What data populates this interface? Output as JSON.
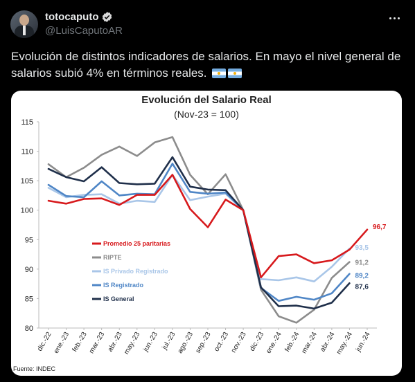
{
  "tweet": {
    "author_name": "totocaputo",
    "author_handle": "@LuisCaputoAR",
    "text": "Evolución de distintos indicadores de salarios. En mayo el nivel general de salarios subió 4% en términos reales.",
    "icons": [
      "verified-badge-icon",
      "more-icon",
      "argentina-flag-icon",
      "argentina-flag-icon"
    ]
  },
  "chart_data": {
    "type": "line",
    "title": "Evolución del Salario Real",
    "subtitle": "(Nov-23 = 100)",
    "source": "Fuente: INDEC",
    "categories": [
      "dic.-22",
      "ene.-23",
      "feb.-23",
      "mar.-23",
      "abr.-23",
      "may.-23",
      "jun.-23",
      "jul.-23",
      "ago.-23",
      "sep.-23",
      "oct.-23",
      "nov.-23",
      "dic.-23",
      "ene.-24",
      "feb.-24",
      "mar.-24",
      "abr.-24",
      "may.-24",
      "jun.-24"
    ],
    "ylim": [
      80,
      115
    ],
    "yticks": [
      "80",
      "85",
      "90",
      "95",
      "100",
      "105",
      "110",
      "115"
    ],
    "grid": false,
    "legend_placement": "left-center",
    "series": [
      {
        "name": "Promedio 25 paritarias",
        "color": "#d7191c",
        "end_label": "96,7",
        "values": [
          101.6,
          101.1,
          101.9,
          102.0,
          100.9,
          102.6,
          102.6,
          106.0,
          100.2,
          97.1,
          101.8,
          100.0,
          88.6,
          92.2,
          92.5,
          91.0,
          91.5,
          93.3,
          96.7
        ]
      },
      {
        "name": "RIPTE",
        "color": "#8c8c8c",
        "end_label": "91,2",
        "values": [
          107.8,
          105.6,
          107.2,
          109.4,
          110.8,
          109.2,
          111.5,
          112.4,
          106.0,
          102.7,
          106.1,
          100.0,
          86.5,
          82.0,
          80.9,
          83.1,
          88.5,
          91.2,
          null
        ]
      },
      {
        "name": "IS Privado Registrado",
        "color": "#a9c6e8",
        "end_label": "93,5",
        "values": [
          103.8,
          102.2,
          102.6,
          102.7,
          101.1,
          101.6,
          101.4,
          106.0,
          101.7,
          102.3,
          102.8,
          100.0,
          88.3,
          88.1,
          88.6,
          87.9,
          90.4,
          93.5,
          null
        ]
      },
      {
        "name": "IS Registrado",
        "color": "#4f86c6",
        "end_label": "89,2",
        "values": [
          104.3,
          102.4,
          102.2,
          104.9,
          102.5,
          102.8,
          102.7,
          107.9,
          103.1,
          102.8,
          103.0,
          100.0,
          86.8,
          84.6,
          85.3,
          84.8,
          85.9,
          89.2,
          null
        ]
      },
      {
        "name": "IS General",
        "color": "#1f2f4a",
        "end_label": "87,6",
        "values": [
          107.0,
          105.6,
          104.9,
          107.3,
          104.6,
          104.4,
          104.5,
          109.0,
          104.0,
          103.5,
          103.4,
          100.0,
          86.9,
          83.7,
          83.8,
          83.3,
          84.3,
          87.6,
          null
        ]
      }
    ]
  }
}
